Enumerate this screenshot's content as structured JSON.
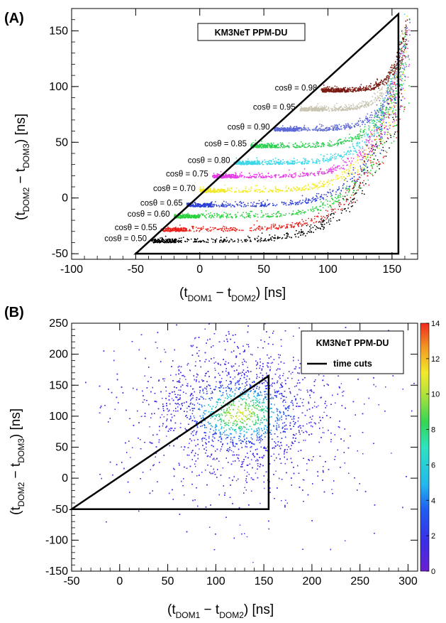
{
  "chart_data": [
    {
      "panel": "(A)",
      "type": "scatter",
      "xlabel": "(tDOM1 − tDOM2) [ns]",
      "ylabel": "(tDOM2 − tDOM3) [ns]",
      "xlabel_parts": {
        "open": "(t",
        "sub1": "DOM1",
        "mid": " − t",
        "sub2": "DOM2",
        "close": ") [ns]"
      },
      "ylabel_parts": {
        "open": "(t",
        "sub1": "DOM2",
        "mid": " − t",
        "sub2": "DOM3",
        "close": ") [ns]"
      },
      "xlim": [
        -100,
        170
      ],
      "ylim": [
        -55,
        170
      ],
      "xticks": [
        -100,
        -50,
        0,
        50,
        100,
        150
      ],
      "yticks": [
        -50,
        0,
        50,
        100,
        150
      ],
      "legend_title": "KM3NeT PPM-DU",
      "legend_position": "top-center",
      "triangle": [
        [
          -50,
          -50
        ],
        [
          155,
          165
        ],
        [
          155,
          -50
        ]
      ],
      "series": [
        {
          "name": "cosθ = 0.50",
          "y": -40,
          "x_start": -38,
          "color": "#000000"
        },
        {
          "name": "cosθ = 0.55",
          "y": -30,
          "x_start": -30,
          "color": "#e8221b"
        },
        {
          "name": "cosθ = 0.60",
          "y": -18,
          "x_start": -20,
          "color": "#26d13a"
        },
        {
          "name": "cosθ = 0.65",
          "y": -8,
          "x_start": -10,
          "color": "#2b3fd8"
        },
        {
          "name": "cosθ = 0.70",
          "y": 5,
          "x_start": 0,
          "color": "#f2ea2a"
        },
        {
          "name": "cosθ = 0.75",
          "y": 18,
          "x_start": 10,
          "color": "#e63be6"
        },
        {
          "name": "cosθ = 0.80",
          "y": 30,
          "x_start": 27,
          "color": "#3dd8e8"
        },
        {
          "name": "cosθ = 0.85",
          "y": 45,
          "x_start": 40,
          "color": "#2fcf52"
        },
        {
          "name": "cosθ = 0.90",
          "y": 60,
          "x_start": 58,
          "color": "#5d68d6"
        },
        {
          "name": "cosθ = 0.95",
          "y": 78,
          "x_start": 78,
          "color": "#c9c5b2"
        },
        {
          "name": "cosθ = 0.98",
          "y": 95,
          "x_start": 95,
          "color": "#7a1a12"
        }
      ]
    },
    {
      "panel": "(B)",
      "type": "heatmap",
      "xlabel": "(tDOM1 − tDOM2) [ns]",
      "ylabel": "(tDOM2 − tDOM3) [ns]",
      "xlabel_parts": {
        "open": "(t",
        "sub1": "DOM1",
        "mid": " − t",
        "sub2": "DOM2",
        "close": ") [ns]"
      },
      "ylabel_parts": {
        "open": "(t",
        "sub1": "DOM2",
        "mid": " − t",
        "sub2": "DOM3",
        "close": ") [ns]"
      },
      "xlim": [
        -50,
        310
      ],
      "ylim": [
        -150,
        250
      ],
      "xticks": [
        -50,
        0,
        50,
        100,
        150,
        200,
        250,
        300
      ],
      "yticks": [
        -150,
        -100,
        -50,
        0,
        50,
        100,
        150,
        200,
        250
      ],
      "legend_title": "KM3NeT PPM-DU",
      "legend_entry": "time cuts",
      "legend_position": "top-right",
      "triangle": [
        [
          -50,
          -50
        ],
        [
          155,
          165
        ],
        [
          155,
          -50
        ]
      ],
      "density_peak": {
        "x": 125,
        "y": 105
      },
      "colorbar": {
        "min": 0,
        "max": 14,
        "ticks": [
          0,
          2,
          4,
          6,
          8,
          10,
          12,
          14
        ]
      }
    }
  ]
}
